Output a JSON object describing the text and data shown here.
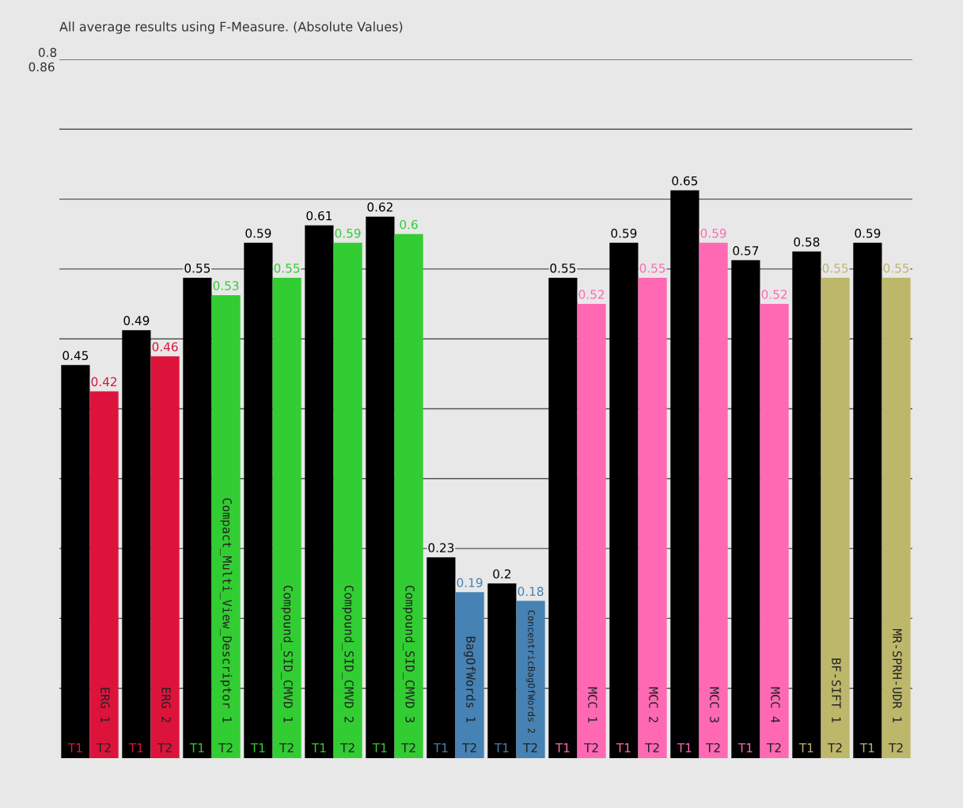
{
  "chart_data": {
    "type": "bar",
    "title": "All average results using F-Measure. (Absolute Values)",
    "categories": [
      "ERG 1",
      "ERG 2",
      "Compact_Multi_View_Descriptor 1",
      "Compound_SID_CMVD 1",
      "Compound_SID_CMVD 2",
      "Compound_SID_CMVD 3",
      "BagOfWords 1",
      "ConcentricBagOfWords 2",
      "MCC 1",
      "MCC 2",
      "MCC 3",
      "MCC 4",
      "BF-SIFT 1",
      "MR-SPRH-UDR 1"
    ],
    "series": [
      {
        "name": "T1",
        "color": "#000000",
        "values": [
          0.45,
          0.49,
          0.55,
          0.59,
          0.61,
          0.62,
          0.23,
          0.2,
          0.55,
          0.59,
          0.65,
          0.57,
          0.58,
          0.59
        ]
      },
      {
        "name": "T2",
        "colors": [
          "#dc143c",
          "#dc143c",
          "#32cd32",
          "#32cd32",
          "#32cd32",
          "#32cd32",
          "#4682b4",
          "#4682b4",
          "#ff69b4",
          "#ff69b4",
          "#ff69b4",
          "#ff69b4",
          "#bdb76b",
          "#bdb76b"
        ],
        "values": [
          0.42,
          0.46,
          0.53,
          0.55,
          0.59,
          0.6,
          0.19,
          0.18,
          0.52,
          0.55,
          0.59,
          0.52,
          0.55,
          0.55
        ]
      }
    ],
    "ylim": [
      0,
      0.8
    ],
    "yticks": [
      {
        "value": 0.08,
        "label": null
      },
      {
        "value": 0.16,
        "label": null
      },
      {
        "value": 0.24,
        "label": null
      },
      {
        "value": 0.32,
        "label": null
      },
      {
        "value": 0.4,
        "label": null
      },
      {
        "value": 0.48,
        "label": null
      },
      {
        "value": 0.56,
        "label": null
      },
      {
        "value": 0.64,
        "label": null
      },
      {
        "value": 0.72,
        "label": null
      },
      0.8
    ],
    "annotations": [
      "0.86"
    ],
    "grid": "y",
    "data_labels": true
  }
}
